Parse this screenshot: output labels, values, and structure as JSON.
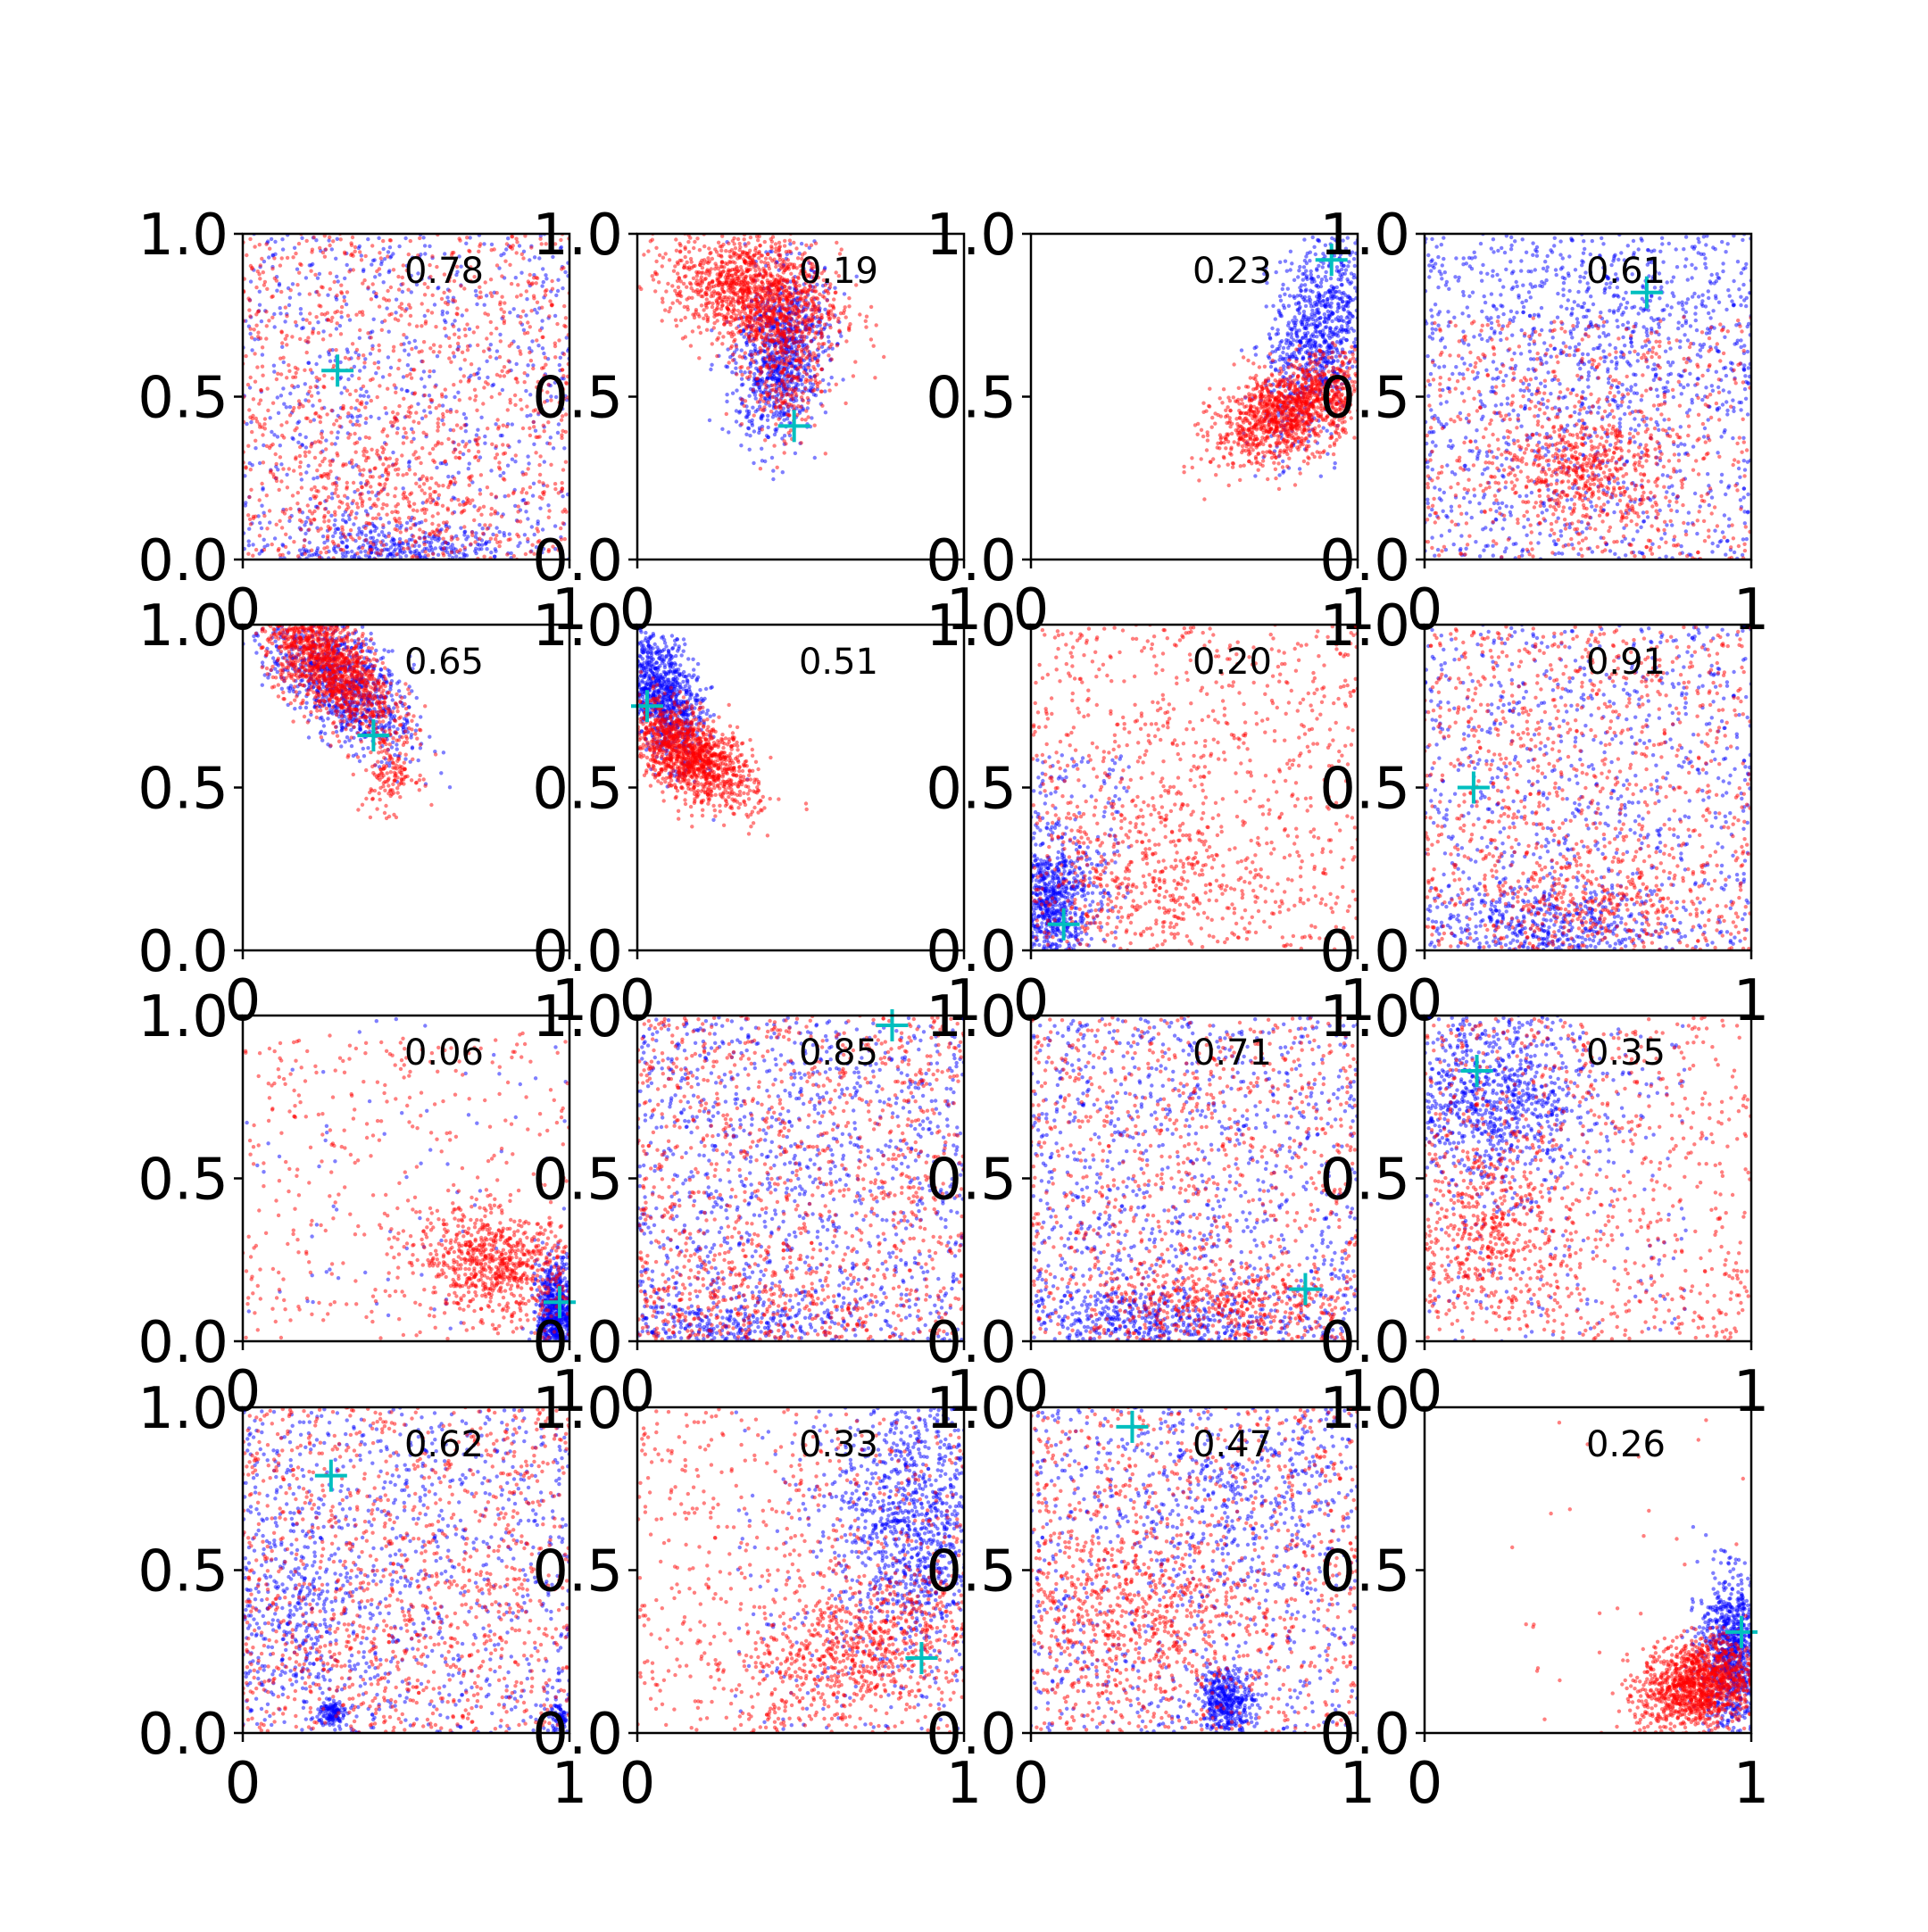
{
  "chart_data": {
    "type": "scatter",
    "layout": {
      "rows": 4,
      "cols": 4
    },
    "xlim": [
      0,
      1
    ],
    "ylim": [
      0,
      1
    ],
    "xticks": [
      "0",
      "1"
    ],
    "yticks": [
      "0.0",
      "0.5",
      "1.0"
    ],
    "grid": false,
    "legend": "none",
    "colors": {
      "series_a": "#0000ff",
      "series_b": "#ff0000",
      "marker": "#00bfbf",
      "axis": "#000000"
    },
    "series": [
      {
        "color": "blue",
        "marker_size": "small",
        "alpha": 0.5
      },
      {
        "color": "red",
        "marker_size": "small",
        "alpha": 0.5
      }
    ],
    "panels": [
      {
        "annotation": "0.78",
        "cross": [
          0.29,
          0.58
        ],
        "clusters": [
          {
            "color": "blue",
            "kind": "uniform",
            "n": 700,
            "xr": [
              0,
              1
            ],
            "yr": [
              0,
              1
            ]
          },
          {
            "color": "blue",
            "kind": "gauss",
            "n": 350,
            "cx": 0.45,
            "cy": 0.03,
            "sx": 0.18,
            "sy": 0.04,
            "rho": 0
          },
          {
            "color": "red",
            "kind": "uniform",
            "n": 1100,
            "xr": [
              0,
              1
            ],
            "yr": [
              0,
              1
            ]
          },
          {
            "color": "red",
            "kind": "gauss",
            "n": 250,
            "cx": 0.45,
            "cy": 0.15,
            "sx": 0.2,
            "sy": 0.12,
            "rho": 0
          }
        ]
      },
      {
        "annotation": "0.19",
        "cross": [
          0.48,
          0.41
        ],
        "clusters": [
          {
            "color": "blue",
            "kind": "gauss",
            "n": 900,
            "cx": 0.44,
            "cy": 0.63,
            "sx": 0.07,
            "sy": 0.13,
            "rho": 0.2
          },
          {
            "color": "red",
            "kind": "gauss",
            "n": 1300,
            "cx": 0.36,
            "cy": 0.82,
            "sx": 0.13,
            "sy": 0.09,
            "rho": -0.3
          },
          {
            "color": "red",
            "kind": "gauss",
            "n": 300,
            "cx": 0.44,
            "cy": 0.58,
            "sx": 0.06,
            "sy": 0.1,
            "rho": 0
          }
        ]
      },
      {
        "annotation": "0.23",
        "cross": [
          0.92,
          0.92
        ],
        "clusters": [
          {
            "color": "blue",
            "kind": "gauss",
            "n": 900,
            "cx": 0.88,
            "cy": 0.7,
            "sx": 0.08,
            "sy": 0.16,
            "rho": 0.4
          },
          {
            "color": "red",
            "kind": "gauss",
            "n": 1300,
            "cx": 0.8,
            "cy": 0.46,
            "sx": 0.12,
            "sy": 0.08,
            "rho": 0.5
          }
        ]
      },
      {
        "annotation": "0.61",
        "cross": [
          0.68,
          0.82
        ],
        "clusters": [
          {
            "color": "blue",
            "kind": "uniform",
            "n": 1100,
            "xr": [
              0,
              1
            ],
            "yr": [
              0,
              1
            ]
          },
          {
            "color": "blue",
            "kind": "gauss",
            "n": 250,
            "cx": 0.6,
            "cy": 0.7,
            "sx": 0.2,
            "sy": 0.15,
            "rho": 0
          },
          {
            "color": "red",
            "kind": "uniform",
            "n": 600,
            "xr": [
              0,
              1
            ],
            "yr": [
              0,
              0.75
            ]
          },
          {
            "color": "red",
            "kind": "gauss",
            "n": 500,
            "cx": 0.5,
            "cy": 0.28,
            "sx": 0.13,
            "sy": 0.09,
            "rho": 0
          }
        ]
      },
      {
        "annotation": "0.65",
        "cross": [
          0.4,
          0.66
        ],
        "clusters": [
          {
            "color": "blue",
            "kind": "gauss",
            "n": 900,
            "cx": 0.3,
            "cy": 0.82,
            "sx": 0.11,
            "sy": 0.11,
            "rho": -0.6
          },
          {
            "color": "red",
            "kind": "gauss",
            "n": 1300,
            "cx": 0.26,
            "cy": 0.88,
            "sx": 0.1,
            "sy": 0.1,
            "rho": -0.6
          },
          {
            "color": "red",
            "kind": "gauss",
            "n": 150,
            "cx": 0.45,
            "cy": 0.55,
            "sx": 0.04,
            "sy": 0.06,
            "rho": 0
          }
        ]
      },
      {
        "annotation": "0.51",
        "cross": [
          0.03,
          0.75
        ],
        "clusters": [
          {
            "color": "blue",
            "kind": "gauss",
            "n": 900,
            "cx": 0.08,
            "cy": 0.78,
            "sx": 0.06,
            "sy": 0.1,
            "rho": -0.4
          },
          {
            "color": "red",
            "kind": "gauss",
            "n": 1300,
            "cx": 0.16,
            "cy": 0.6,
            "sx": 0.1,
            "sy": 0.08,
            "rho": -0.6
          }
        ]
      },
      {
        "annotation": "0.20",
        "cross": [
          0.1,
          0.08
        ],
        "clusters": [
          {
            "color": "blue",
            "kind": "gauss",
            "n": 700,
            "cx": 0.06,
            "cy": 0.15,
            "sx": 0.06,
            "sy": 0.1,
            "rho": 0
          },
          {
            "color": "blue",
            "kind": "uniform",
            "n": 150,
            "xr": [
              0,
              0.3
            ],
            "yr": [
              0,
              0.6
            ]
          },
          {
            "color": "red",
            "kind": "uniform",
            "n": 900,
            "xr": [
              0,
              1
            ],
            "yr": [
              0,
              1
            ]
          },
          {
            "color": "red",
            "kind": "gauss",
            "n": 300,
            "cx": 0.3,
            "cy": 0.2,
            "sx": 0.2,
            "sy": 0.12,
            "rho": 0
          }
        ]
      },
      {
        "annotation": "0.91",
        "cross": [
          0.15,
          0.5
        ],
        "clusters": [
          {
            "color": "blue",
            "kind": "uniform",
            "n": 800,
            "xr": [
              0,
              1
            ],
            "yr": [
              0,
              1
            ]
          },
          {
            "color": "blue",
            "kind": "gauss",
            "n": 400,
            "cx": 0.35,
            "cy": 0.08,
            "sx": 0.18,
            "sy": 0.06,
            "rho": 0
          },
          {
            "color": "red",
            "kind": "uniform",
            "n": 1000,
            "xr": [
              0,
              1
            ],
            "yr": [
              0,
              1
            ]
          },
          {
            "color": "red",
            "kind": "gauss",
            "n": 250,
            "cx": 0.5,
            "cy": 0.15,
            "sx": 0.2,
            "sy": 0.08,
            "rho": 0
          }
        ]
      },
      {
        "annotation": "0.06",
        "cross": [
          0.97,
          0.12
        ],
        "clusters": [
          {
            "color": "blue",
            "kind": "gauss",
            "n": 700,
            "cx": 0.96,
            "cy": 0.08,
            "sx": 0.03,
            "sy": 0.08,
            "rho": 0
          },
          {
            "color": "blue",
            "kind": "uniform",
            "n": 80,
            "xr": [
              0,
              1
            ],
            "yr": [
              0,
              1
            ]
          },
          {
            "color": "red",
            "kind": "uniform",
            "n": 400,
            "xr": [
              0,
              1
            ],
            "yr": [
              0,
              0.95
            ]
          },
          {
            "color": "red",
            "kind": "gauss",
            "n": 700,
            "cx": 0.78,
            "cy": 0.24,
            "sx": 0.12,
            "sy": 0.08,
            "rho": -0.2
          }
        ]
      },
      {
        "annotation": "0.85",
        "cross": [
          0.78,
          0.97
        ],
        "clusters": [
          {
            "color": "blue",
            "kind": "uniform",
            "n": 1100,
            "xr": [
              0,
              1
            ],
            "yr": [
              0,
              1
            ]
          },
          {
            "color": "blue",
            "kind": "gauss",
            "n": 300,
            "cx": 0.25,
            "cy": 0.05,
            "sx": 0.2,
            "sy": 0.05,
            "rho": 0
          },
          {
            "color": "red",
            "kind": "uniform",
            "n": 1100,
            "xr": [
              0,
              1
            ],
            "yr": [
              0,
              1
            ]
          },
          {
            "color": "red",
            "kind": "gauss",
            "n": 200,
            "cx": 0.3,
            "cy": 0.12,
            "sx": 0.2,
            "sy": 0.08,
            "rho": 0
          }
        ]
      },
      {
        "annotation": "0.71",
        "cross": [
          0.84,
          0.16
        ],
        "clusters": [
          {
            "color": "blue",
            "kind": "uniform",
            "n": 1000,
            "xr": [
              0,
              1
            ],
            "yr": [
              0,
              1
            ]
          },
          {
            "color": "blue",
            "kind": "gauss",
            "n": 400,
            "cx": 0.35,
            "cy": 0.06,
            "sx": 0.2,
            "sy": 0.05,
            "rho": 0
          },
          {
            "color": "red",
            "kind": "uniform",
            "n": 900,
            "xr": [
              0,
              1
            ],
            "yr": [
              0,
              1
            ]
          },
          {
            "color": "red",
            "kind": "gauss",
            "n": 400,
            "cx": 0.6,
            "cy": 0.1,
            "sx": 0.2,
            "sy": 0.07,
            "rho": 0
          }
        ]
      },
      {
        "annotation": "0.35",
        "cross": [
          0.16,
          0.83
        ],
        "clusters": [
          {
            "color": "blue",
            "kind": "gauss",
            "n": 900,
            "cx": 0.22,
            "cy": 0.75,
            "sx": 0.15,
            "sy": 0.14,
            "rho": 0
          },
          {
            "color": "blue",
            "kind": "uniform",
            "n": 200,
            "xr": [
              0,
              0.8
            ],
            "yr": [
              0,
              1
            ]
          },
          {
            "color": "red",
            "kind": "uniform",
            "n": 800,
            "xr": [
              0,
              1
            ],
            "yr": [
              0,
              1
            ]
          },
          {
            "color": "red",
            "kind": "gauss",
            "n": 400,
            "cx": 0.2,
            "cy": 0.35,
            "sx": 0.12,
            "sy": 0.15,
            "rho": 0
          }
        ]
      },
      {
        "annotation": "0.62",
        "cross": [
          0.27,
          0.79
        ],
        "clusters": [
          {
            "color": "blue",
            "kind": "uniform",
            "n": 900,
            "xr": [
              0,
              1
            ],
            "yr": [
              0,
              1
            ]
          },
          {
            "color": "blue",
            "kind": "gauss",
            "n": 250,
            "cx": 0.15,
            "cy": 0.4,
            "sx": 0.1,
            "sy": 0.15,
            "rho": 0
          },
          {
            "color": "blue",
            "kind": "gauss",
            "n": 120,
            "cx": 0.27,
            "cy": 0.06,
            "sx": 0.02,
            "sy": 0.02,
            "rho": 0
          },
          {
            "color": "blue",
            "kind": "gauss",
            "n": 80,
            "cx": 0.98,
            "cy": 0.05,
            "sx": 0.02,
            "sy": 0.03,
            "rho": 0
          },
          {
            "color": "red",
            "kind": "uniform",
            "n": 1000,
            "xr": [
              0,
              1
            ],
            "yr": [
              0,
              1
            ]
          },
          {
            "color": "red",
            "kind": "gauss",
            "n": 200,
            "cx": 0.4,
            "cy": 0.3,
            "sx": 0.2,
            "sy": 0.15,
            "rho": 0
          }
        ]
      },
      {
        "annotation": "0.33",
        "cross": [
          0.87,
          0.23
        ],
        "clusters": [
          {
            "color": "blue",
            "kind": "gauss",
            "n": 1000,
            "cx": 0.85,
            "cy": 0.62,
            "sx": 0.12,
            "sy": 0.2,
            "rho": 0
          },
          {
            "color": "blue",
            "kind": "uniform",
            "n": 200,
            "xr": [
              0.3,
              1
            ],
            "yr": [
              0,
              1
            ]
          },
          {
            "color": "red",
            "kind": "uniform",
            "n": 600,
            "xr": [
              0,
              1
            ],
            "yr": [
              0,
              1
            ]
          },
          {
            "color": "red",
            "kind": "gauss",
            "n": 700,
            "cx": 0.68,
            "cy": 0.25,
            "sx": 0.18,
            "sy": 0.12,
            "rho": 0.4
          }
        ]
      },
      {
        "annotation": "0.47",
        "cross": [
          0.31,
          0.94
        ],
        "clusters": [
          {
            "color": "blue",
            "kind": "uniform",
            "n": 700,
            "xr": [
              0,
              1
            ],
            "yr": [
              0,
              1
            ]
          },
          {
            "color": "blue",
            "kind": "gauss",
            "n": 400,
            "cx": 0.6,
            "cy": 0.1,
            "sx": 0.04,
            "sy": 0.05,
            "rho": 0
          },
          {
            "color": "blue",
            "kind": "gauss",
            "n": 300,
            "cx": 0.6,
            "cy": 0.7,
            "sx": 0.18,
            "sy": 0.15,
            "rho": 0
          },
          {
            "color": "red",
            "kind": "uniform",
            "n": 900,
            "xr": [
              0,
              1
            ],
            "yr": [
              0,
              1
            ]
          },
          {
            "color": "red",
            "kind": "gauss",
            "n": 500,
            "cx": 0.3,
            "cy": 0.35,
            "sx": 0.2,
            "sy": 0.15,
            "rho": 0
          }
        ]
      },
      {
        "annotation": "0.26",
        "cross": [
          0.97,
          0.31
        ],
        "clusters": [
          {
            "color": "blue",
            "kind": "gauss",
            "n": 900,
            "cx": 0.94,
            "cy": 0.25,
            "sx": 0.05,
            "sy": 0.12,
            "rho": 0
          },
          {
            "color": "red",
            "kind": "gauss",
            "n": 1300,
            "cx": 0.84,
            "cy": 0.15,
            "sx": 0.09,
            "sy": 0.07,
            "rho": 0.2
          },
          {
            "color": "red",
            "kind": "uniform",
            "n": 30,
            "xr": [
              0.2,
              1
            ],
            "yr": [
              0,
              1
            ]
          }
        ]
      }
    ]
  }
}
